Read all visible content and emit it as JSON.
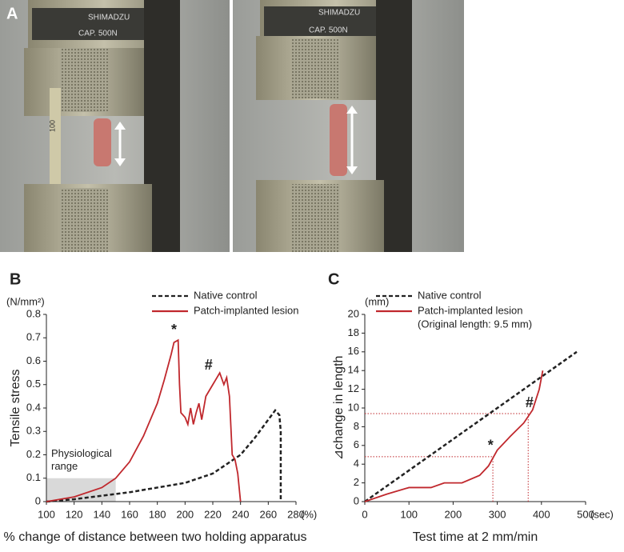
{
  "photo_panel": {
    "label": "A",
    "brand": "SHIMADZU",
    "capacity": "CAP. 500N",
    "ruler": "100"
  },
  "chart_data": [
    {
      "type": "line",
      "panel": "B",
      "x_label": "% change of distance between two holding apparatus",
      "x_unit": "(%)",
      "y_label": "Tensile stress",
      "y_unit": "(N/mm²)",
      "xlim": [
        100,
        280
      ],
      "xticks": [
        100,
        120,
        140,
        160,
        180,
        200,
        220,
        240,
        260,
        280
      ],
      "ylim": [
        0,
        0.8
      ],
      "yticks": [
        0,
        0.1,
        0.2,
        0.3,
        0.4,
        0.5,
        0.6,
        0.7,
        0.8
      ],
      "shaded_region": {
        "label_lines": [
          "Physiological",
          "range"
        ],
        "xlim": [
          100,
          150
        ],
        "ylim": [
          0,
          0.1
        ],
        "color": "#d9d9d9"
      },
      "annotations": [
        "*",
        "#"
      ],
      "series": [
        {
          "name": "Native control",
          "color": "#222222",
          "style": "dashed",
          "x": [
            100,
            120,
            140,
            160,
            180,
            200,
            220,
            240,
            250,
            260,
            265,
            268,
            269,
            269
          ],
          "values": [
            0,
            0.01,
            0.025,
            0.04,
            0.06,
            0.08,
            0.12,
            0.2,
            0.27,
            0.35,
            0.39,
            0.37,
            0.3,
            0
          ]
        },
        {
          "name": "Patch-implanted lesion",
          "color": "#c0282d",
          "style": "solid",
          "x": [
            100,
            120,
            140,
            150,
            160,
            170,
            180,
            185,
            190,
            192,
            195,
            196,
            197,
            200,
            202,
            204,
            206,
            208,
            210,
            212,
            215,
            220,
            222,
            225,
            228,
            230,
            232,
            234,
            236,
            238,
            240
          ],
          "values": [
            0,
            0.02,
            0.06,
            0.1,
            0.17,
            0.28,
            0.42,
            0.52,
            0.63,
            0.68,
            0.69,
            0.5,
            0.38,
            0.36,
            0.33,
            0.4,
            0.33,
            0.38,
            0.42,
            0.35,
            0.45,
            0.5,
            0.52,
            0.55,
            0.5,
            0.53,
            0.45,
            0.2,
            0.18,
            0.12,
            0
          ]
        }
      ]
    },
    {
      "type": "line",
      "panel": "C",
      "x_label": "Test time at 2 mm/min",
      "x_unit": "(sec)",
      "y_label": "⊿change in length",
      "y_unit": "(mm)",
      "xlim": [
        0,
        500
      ],
      "xticks": [
        0,
        100,
        200,
        300,
        400,
        500
      ],
      "ylim": [
        0,
        20
      ],
      "yticks": [
        0,
        2,
        4,
        6,
        8,
        10,
        12,
        14,
        16,
        18,
        20
      ],
      "legend_note": "(Original length: 9.5 mm)",
      "annotations": [
        "*",
        "#"
      ],
      "reference_points": [
        {
          "x": 290,
          "y": 4.8
        },
        {
          "x": 370,
          "y": 9.4
        }
      ],
      "series": [
        {
          "name": "Native control",
          "color": "#222222",
          "style": "dashed",
          "x": [
            0,
            480
          ],
          "values": [
            0,
            16
          ]
        },
        {
          "name": "Patch-implanted lesion",
          "color": "#c0282d",
          "style": "solid",
          "x": [
            0,
            50,
            100,
            150,
            180,
            220,
            260,
            280,
            300,
            330,
            360,
            380,
            395,
            403
          ],
          "values": [
            0,
            0.8,
            1.5,
            1.5,
            2,
            2,
            2.8,
            3.8,
            5.5,
            7,
            8.4,
            9.8,
            12,
            14
          ]
        }
      ]
    }
  ]
}
